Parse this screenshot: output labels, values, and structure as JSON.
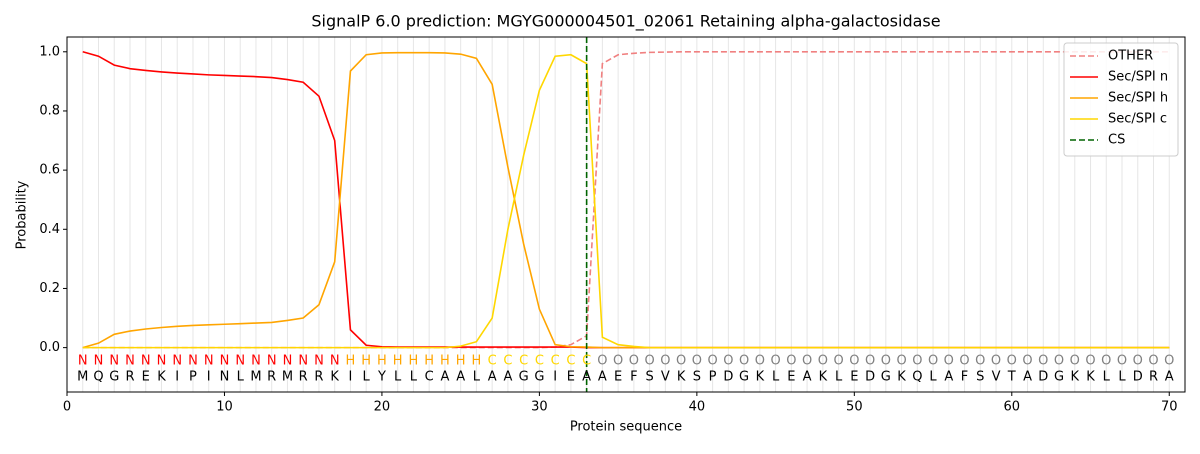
{
  "chart_data": {
    "type": "line",
    "title": "SignalP 6.0 prediction: MGYG000004501_02061 Retaining alpha-galactosidase",
    "xlabel": "Protein sequence",
    "ylabel": "Probability",
    "xlim": [
      0,
      71
    ],
    "xticks": [
      0,
      10,
      20,
      30,
      40,
      50,
      60,
      70
    ],
    "ylim": [
      -0.15,
      1.05
    ],
    "yticks": [
      {
        "value": 0,
        "label": "0.0"
      },
      0.2,
      0.4,
      0.6,
      0.8,
      {
        "value": 1,
        "label": "1.0"
      }
    ],
    "position_grid": true,
    "legend": "upper right",
    "x": [
      1,
      2,
      3,
      4,
      5,
      6,
      7,
      8,
      9,
      10,
      11,
      12,
      13,
      14,
      15,
      16,
      17,
      18,
      19,
      20,
      21,
      22,
      23,
      24,
      25,
      26,
      27,
      28,
      29,
      30,
      31,
      32,
      33,
      34,
      35,
      36,
      37,
      38,
      39,
      40,
      41,
      42,
      43,
      44,
      45,
      46,
      47,
      48,
      49,
      50,
      51,
      52,
      53,
      54,
      55,
      56,
      57,
      58,
      59,
      60,
      61,
      62,
      63,
      64,
      65,
      66,
      67,
      68,
      69,
      70
    ],
    "series": [
      {
        "name": "OTHER",
        "color": "#f08080",
        "dash": true,
        "values": [
          0,
          0,
          0,
          0,
          0,
          0,
          0,
          0,
          0,
          0,
          0,
          0,
          0,
          0,
          0,
          0,
          0,
          0,
          0,
          0,
          0,
          0,
          0,
          0,
          0,
          0,
          0,
          0,
          0,
          0,
          0.002,
          0.01,
          0.04,
          0.96,
          0.99,
          0.995,
          0.998,
          0.999,
          1,
          1,
          1,
          1,
          1,
          1,
          1,
          1,
          1,
          1,
          1,
          1,
          1,
          1,
          1,
          1,
          1,
          1,
          1,
          1,
          1,
          1,
          1,
          1,
          1,
          1,
          1,
          1,
          1,
          1,
          1,
          1
        ]
      },
      {
        "name": "Sec/SPI n",
        "color": "#ff0000",
        "dash": false,
        "values": [
          1.0,
          0.985,
          0.955,
          0.943,
          0.937,
          0.932,
          0.928,
          0.925,
          0.922,
          0.92,
          0.918,
          0.916,
          0.913,
          0.906,
          0.897,
          0.85,
          0.7,
          0.06,
          0.008,
          0.003,
          0.002,
          0.002,
          0.002,
          0.002,
          0.002,
          0.002,
          0.002,
          0.002,
          0.002,
          0.002,
          0.002,
          0.002,
          0,
          0,
          0,
          0,
          0,
          0,
          0,
          0,
          0,
          0,
          0,
          0,
          0,
          0,
          0,
          0,
          0,
          0,
          0,
          0,
          0,
          0,
          0,
          0,
          0,
          0,
          0,
          0,
          0,
          0,
          0,
          0,
          0,
          0,
          0,
          0,
          0,
          0
        ]
      },
      {
        "name": "Sec/SPI h",
        "color": "#ffa500",
        "dash": false,
        "values": [
          0,
          0.015,
          0.045,
          0.056,
          0.063,
          0.068,
          0.072,
          0.075,
          0.077,
          0.079,
          0.081,
          0.083,
          0.085,
          0.092,
          0.1,
          0.145,
          0.29,
          0.935,
          0.99,
          0.996,
          0.997,
          0.997,
          0.997,
          0.996,
          0.992,
          0.978,
          0.89,
          0.61,
          0.35,
          0.13,
          0.01,
          0.003,
          0.002,
          0,
          0,
          0,
          0,
          0,
          0,
          0,
          0,
          0,
          0,
          0,
          0,
          0,
          0,
          0,
          0,
          0,
          0,
          0,
          0,
          0,
          0,
          0,
          0,
          0,
          0,
          0,
          0,
          0,
          0,
          0,
          0,
          0,
          0,
          0,
          0,
          0
        ]
      },
      {
        "name": "Sec/SPI c",
        "color": "#ffd700",
        "dash": false,
        "values": [
          0,
          0,
          0,
          0,
          0,
          0,
          0,
          0,
          0,
          0,
          0,
          0,
          0,
          0,
          0,
          0,
          0,
          0,
          0,
          0,
          0,
          0,
          0,
          0,
          0.005,
          0.02,
          0.1,
          0.4,
          0.65,
          0.87,
          0.985,
          0.99,
          0.96,
          0.035,
          0.01,
          0.004,
          0,
          0,
          0,
          0,
          0,
          0,
          0,
          0,
          0,
          0,
          0,
          0,
          0,
          0,
          0,
          0,
          0,
          0,
          0,
          0,
          0,
          0,
          0,
          0,
          0,
          0,
          0,
          0,
          0,
          0,
          0,
          0,
          0,
          0
        ]
      }
    ],
    "cs": {
      "name": "CS",
      "position": 33,
      "color": "#006400"
    },
    "regions": [
      "N",
      "N",
      "N",
      "N",
      "N",
      "N",
      "N",
      "N",
      "N",
      "N",
      "N",
      "N",
      "N",
      "N",
      "N",
      "N",
      "N",
      "H",
      "H",
      "H",
      "H",
      "H",
      "H",
      "H",
      "H",
      "H",
      "C",
      "C",
      "C",
      "C",
      "C",
      "C",
      "C",
      "O",
      "O",
      "O",
      "O",
      "O",
      "O",
      "O",
      "O",
      "O",
      "O",
      "O",
      "O",
      "O",
      "O",
      "O",
      "O",
      "O",
      "O",
      "O",
      "O",
      "O",
      "O",
      "O",
      "O",
      "O",
      "O",
      "O",
      "O",
      "O",
      "O",
      "O",
      "O",
      "O",
      "O",
      "O",
      "O",
      "O"
    ],
    "region_colors": {
      "N": "#ff0000",
      "H": "#ffa500",
      "C": "#ffd700",
      "O": "#808080"
    },
    "residues": [
      "M",
      "Q",
      "G",
      "R",
      "E",
      "K",
      "I",
      "P",
      "I",
      "N",
      "L",
      "M",
      "R",
      "M",
      "R",
      "R",
      "K",
      "I",
      "L",
      "Y",
      "L",
      "L",
      "C",
      "A",
      "A",
      "L",
      "A",
      "A",
      "G",
      "G",
      "I",
      "E",
      "A",
      "A",
      "E",
      "F",
      "S",
      "V",
      "K",
      "S",
      "P",
      "D",
      "G",
      "K",
      "L",
      "E",
      "A",
      "K",
      "L",
      "E",
      "D",
      "G",
      "K",
      "Q",
      "L",
      "A",
      "F",
      "S",
      "V",
      "T",
      "A",
      "D",
      "G",
      "K",
      "K",
      "L",
      "L",
      "D",
      "R",
      "A"
    ]
  }
}
